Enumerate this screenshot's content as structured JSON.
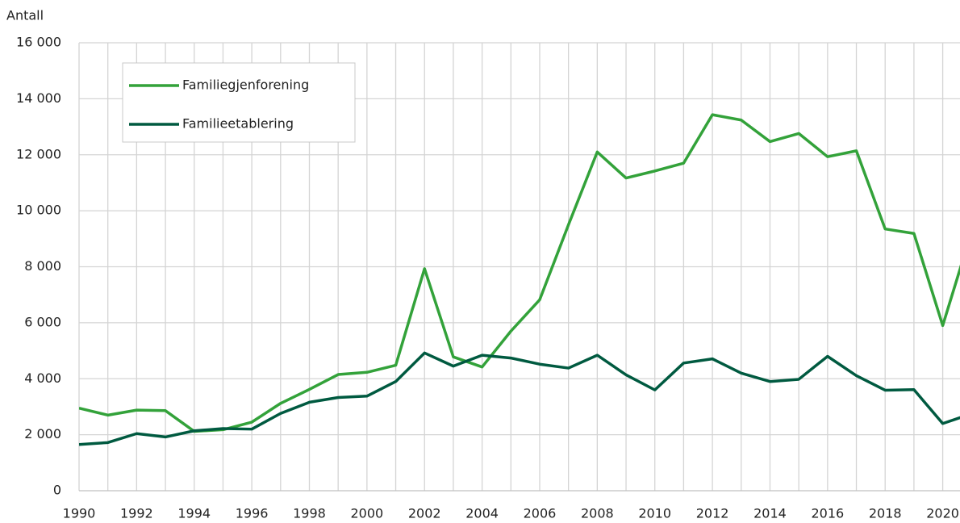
{
  "chart_data": {
    "type": "line",
    "y_axis_label": "Antall",
    "x": [
      1990,
      1991,
      1992,
      1993,
      1994,
      1995,
      1996,
      1997,
      1998,
      1999,
      2000,
      2001,
      2002,
      2003,
      2004,
      2005,
      2006,
      2007,
      2008,
      2009,
      2010,
      2011,
      2012,
      2013,
      2014,
      2015,
      2016,
      2017,
      2018,
      2019,
      2020,
      2021
    ],
    "series": [
      {
        "name": "Familiegjenforening",
        "color": "#33a23a",
        "values": [
          2950,
          2700,
          2880,
          2860,
          2120,
          2180,
          2450,
          3120,
          3620,
          4150,
          4230,
          4480,
          7930,
          4780,
          4420,
          5700,
          6820,
          9500,
          12100,
          11170,
          11420,
          11700,
          13430,
          13240,
          12470,
          12760,
          11930,
          12140,
          9350,
          9190,
          5900,
          9250
        ]
      },
      {
        "name": "Familieetablering",
        "color": "#005a40",
        "values": [
          1650,
          1720,
          2040,
          1920,
          2140,
          2220,
          2200,
          2760,
          3160,
          3330,
          3380,
          3900,
          4920,
          4450,
          4840,
          4740,
          4520,
          4380,
          4840,
          4140,
          3600,
          4560,
          4710,
          4200,
          3900,
          3980,
          4800,
          4110,
          3590,
          3610,
          2400,
          2750
        ]
      }
    ],
    "xlim": [
      1990,
      2020.6
    ],
    "xticks": [
      1990,
      1992,
      1994,
      1996,
      1998,
      2000,
      2002,
      2004,
      2006,
      2008,
      2010,
      2012,
      2014,
      2016,
      2018,
      2020
    ],
    "minor_xticks": [
      1990,
      1991,
      1992,
      1993,
      1994,
      1995,
      1996,
      1997,
      1998,
      1999,
      2000,
      2001,
      2002,
      2003,
      2004,
      2005,
      2006,
      2007,
      2008,
      2009,
      2010,
      2011,
      2012,
      2013,
      2014,
      2015,
      2016,
      2017,
      2018,
      2019,
      2020
    ],
    "ylim": [
      0,
      16000
    ],
    "yticks": [
      0,
      {
        "value": 2000,
        "label": "2 000"
      },
      {
        "value": 4000,
        "label": "4 000"
      },
      {
        "value": 6000,
        "label": "6 000"
      },
      {
        "value": 8000,
        "label": "8 000"
      },
      {
        "value": 10000,
        "label": "10 000"
      },
      {
        "value": 12000,
        "label": "12 000"
      },
      {
        "value": 14000,
        "label": "14 000"
      },
      {
        "value": 16000,
        "label": "16 000"
      }
    ],
    "grid": true,
    "legend": "upper left"
  }
}
